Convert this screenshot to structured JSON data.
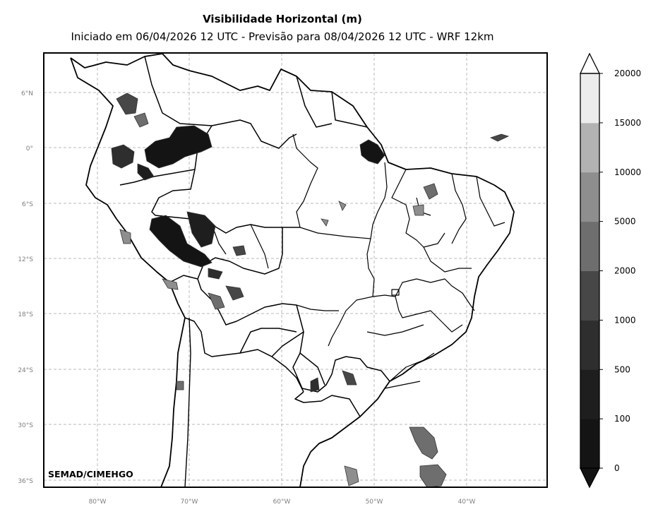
{
  "title": "Visibilidade Horizontal (m)",
  "subtitle": "Iniciado em 06/04/2026 12 UTC - Previsão para 08/04/2026 12 UTC - WRF 12km",
  "watermark": "SEMAD/CIMEHGO",
  "lat_ticks": [
    "6°N",
    "0°",
    "6°S",
    "12°S",
    "18°S",
    "24°S",
    "30°S",
    "36°S"
  ],
  "lon_ticks": [
    "80°W",
    "70°W",
    "60°W",
    "50°W",
    "40°W"
  ],
  "colorbar": {
    "ticks": [
      "0",
      "100",
      "500",
      "1000",
      "2000",
      "5000",
      "10000",
      "15000",
      "20000"
    ],
    "colors": [
      "#141414",
      "#1e1e1e",
      "#2e2e2e",
      "#474747",
      "#6e6e6e",
      "#8e8e8e",
      "#b2b2b2",
      "#ececec"
    ],
    "extend": "both"
  },
  "grid": true,
  "colors": {
    "land_outline": "#000000",
    "grid": "#b0b0b0",
    "tick_text": "#808080"
  }
}
